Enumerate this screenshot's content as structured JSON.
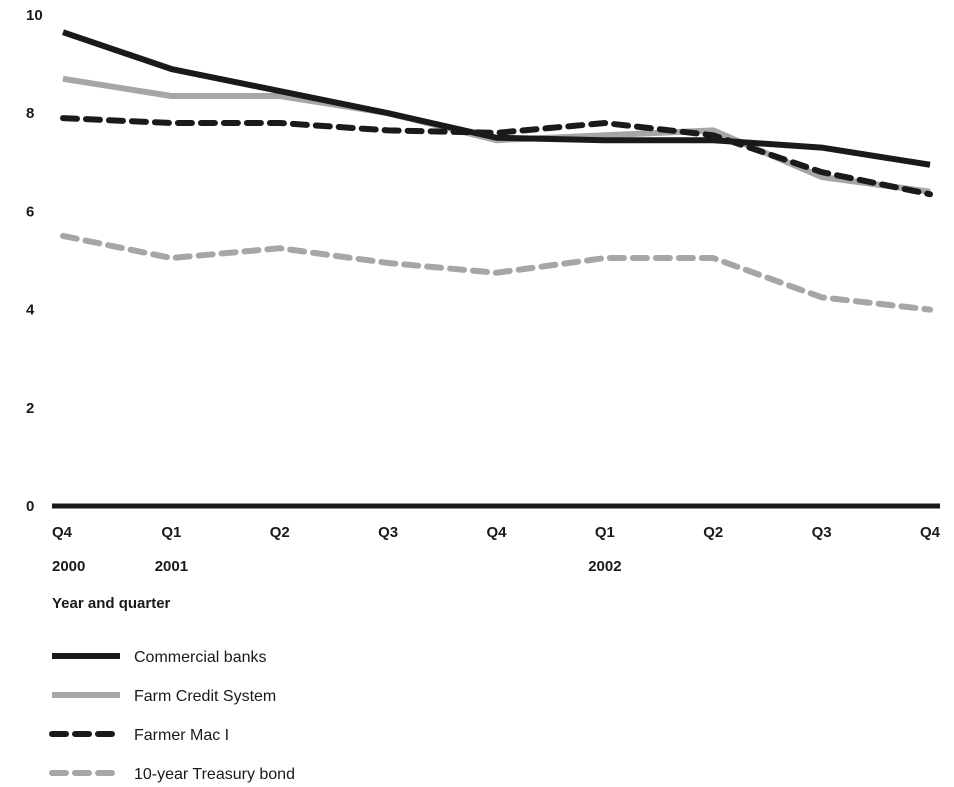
{
  "chart_data": {
    "type": "line",
    "title": "",
    "xlabel": "Year and quarter",
    "ylabel": "",
    "ylim": [
      0,
      10
    ],
    "yticks": [
      "0",
      "2",
      "4",
      "6",
      "8",
      "10"
    ],
    "categories": [
      "Q4",
      "Q1",
      "Q2",
      "Q3",
      "Q4",
      "Q1",
      "Q2",
      "Q3",
      "Q4"
    ],
    "year_labels": [
      "2000",
      "2001",
      "",
      "",
      "",
      "2002",
      "",
      "",
      ""
    ],
    "grid": false,
    "legend_position": "bottom-left",
    "series": [
      {
        "name": "Commercial banks",
        "style": "solid",
        "color": "#1a1a1a",
        "values": [
          9.65,
          8.9,
          8.45,
          8.0,
          7.5,
          7.45,
          7.45,
          7.3,
          6.95
        ]
      },
      {
        "name": "Farm Credit System",
        "style": "solid",
        "color": "#a6a6a6",
        "values": [
          8.7,
          8.35,
          8.35,
          8.0,
          7.45,
          7.55,
          7.65,
          6.7,
          6.4
        ]
      },
      {
        "name": "Farmer Mac I",
        "style": "dashed",
        "color": "#1a1a1a",
        "values": [
          7.9,
          7.8,
          7.8,
          7.65,
          7.6,
          7.8,
          7.55,
          6.8,
          6.35
        ]
      },
      {
        "name": "10-year Treasury bond",
        "style": "dashed",
        "color": "#a6a6a6",
        "values": [
          5.5,
          5.05,
          5.25,
          4.95,
          4.75,
          5.05,
          5.05,
          4.25,
          4.0
        ]
      }
    ]
  }
}
